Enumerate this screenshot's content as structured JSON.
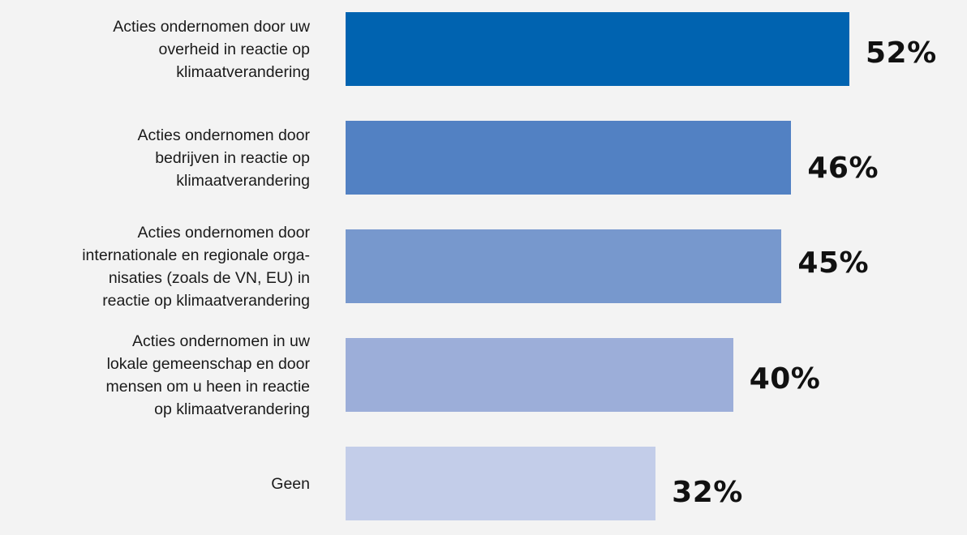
{
  "chart_data": {
    "type": "bar",
    "orientation": "horizontal",
    "categories": [
      "Acties ondernomen door uw\noverheid in reactie op\nklimaatverandering",
      "Acties ondernomen door\nbedrijven in reactie op\nklimaatverandering",
      "Acties ondernomen door\ninternationale en regionale orga-\nnisaties (zoals de VN, EU) in\nreactie op klimaatverandering",
      "Acties ondernomen in uw\nlokale gemeenschap en door\nmensen om u heen in reactie\nop klimaatverandering",
      "Geen"
    ],
    "values": [
      52,
      46,
      45,
      40,
      32
    ],
    "value_labels": [
      "52%",
      "46%",
      "45%",
      "40%",
      "32%"
    ],
    "bar_colors": [
      "#0063b0",
      "#5281c3",
      "#7798cd",
      "#9caed9",
      "#c3cde9"
    ],
    "title": "",
    "xlabel": "",
    "ylabel": "",
    "xlim": [
      0,
      100
    ],
    "grid": false,
    "legend": "none"
  }
}
